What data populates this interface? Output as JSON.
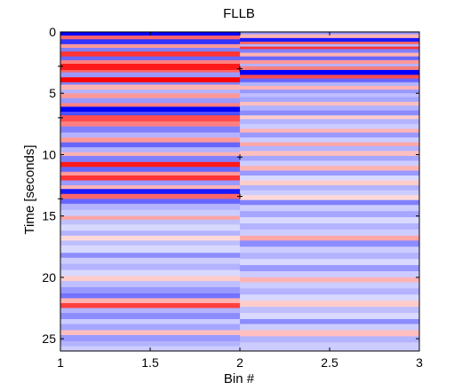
{
  "chart_data": {
    "type": "heatmap",
    "title": "FLLB",
    "xlabel": "Bin #",
    "ylabel": "Time [seconds]",
    "xlim": [
      1,
      3
    ],
    "ylim": [
      0,
      26
    ],
    "y_reversed": true,
    "grid": false,
    "colormap": {
      "negative": "#0000ff",
      "zero": "#ffffff",
      "positive": "#ff0000",
      "range": [
        -1,
        1
      ]
    },
    "x_ticks": [
      {
        "value": 1,
        "label": "1"
      },
      {
        "value": 1.5,
        "label": "1.5"
      },
      {
        "value": 2,
        "label": "2"
      },
      {
        "value": 2.5,
        "label": "2.5"
      },
      {
        "value": 3,
        "label": "3"
      }
    ],
    "y_ticks": [
      {
        "value": 0,
        "label": "0"
      },
      {
        "value": 5,
        "label": "5"
      },
      {
        "value": 10,
        "label": "10"
      },
      {
        "value": 15,
        "label": "15"
      },
      {
        "value": 20,
        "label": "20"
      },
      {
        "value": 25,
        "label": "25"
      }
    ],
    "markers": [
      {
        "x": 1,
        "y": 2.8
      },
      {
        "x": 2,
        "y": 3.0
      },
      {
        "x": 1,
        "y": 7.0
      },
      {
        "x": 2,
        "y": 10.2
      },
      {
        "x": 1,
        "y": 13.6
      },
      {
        "x": 2,
        "y": 13.4
      }
    ],
    "columns": [
      {
        "x_range": [
          1,
          2
        ],
        "bands": [
          [
            0.0,
            0.3,
            -1.0
          ],
          [
            0.3,
            0.6,
            0.6
          ],
          [
            0.6,
            1.0,
            -0.8
          ],
          [
            1.0,
            1.3,
            0.4
          ],
          [
            1.3,
            1.6,
            -0.5
          ],
          [
            1.6,
            2.0,
            0.8
          ],
          [
            2.0,
            2.3,
            -0.6
          ],
          [
            2.3,
            2.6,
            0.5
          ],
          [
            2.6,
            3.1,
            0.9
          ],
          [
            3.1,
            3.3,
            0.6
          ],
          [
            3.3,
            3.7,
            -0.4
          ],
          [
            3.7,
            4.1,
            1.0
          ],
          [
            4.1,
            4.3,
            -0.5
          ],
          [
            4.3,
            4.7,
            0.3
          ],
          [
            4.7,
            5.0,
            -0.3
          ],
          [
            5.0,
            5.4,
            0.4
          ],
          [
            5.4,
            5.8,
            -0.4
          ],
          [
            5.8,
            6.1,
            0.5
          ],
          [
            6.1,
            6.5,
            -1.0
          ],
          [
            6.5,
            6.8,
            -0.7
          ],
          [
            6.8,
            7.3,
            0.7
          ],
          [
            7.3,
            7.7,
            0.5
          ],
          [
            7.7,
            8.2,
            -0.5
          ],
          [
            8.2,
            8.6,
            -0.3
          ],
          [
            8.6,
            9.0,
            0.4
          ],
          [
            9.0,
            9.4,
            -0.6
          ],
          [
            9.4,
            9.8,
            -0.3
          ],
          [
            9.8,
            10.1,
            0.3
          ],
          [
            10.1,
            10.6,
            -0.5
          ],
          [
            10.6,
            11.0,
            0.9
          ],
          [
            11.0,
            11.4,
            -0.6
          ],
          [
            11.4,
            11.7,
            0.4
          ],
          [
            11.7,
            12.1,
            0.8
          ],
          [
            12.1,
            12.5,
            -0.4
          ],
          [
            12.5,
            12.8,
            0.3
          ],
          [
            12.8,
            13.2,
            -0.9
          ],
          [
            13.2,
            13.6,
            0.6
          ],
          [
            13.6,
            14.0,
            -0.6
          ],
          [
            14.0,
            14.5,
            -0.3
          ],
          [
            14.5,
            15.0,
            -0.2
          ],
          [
            15.0,
            15.3,
            0.35
          ],
          [
            15.3,
            15.7,
            -0.25
          ],
          [
            15.7,
            16.2,
            -0.15
          ],
          [
            16.2,
            16.6,
            -0.3
          ],
          [
            16.6,
            17.0,
            0.15
          ],
          [
            17.0,
            17.4,
            -0.25
          ],
          [
            17.4,
            18.0,
            -0.15
          ],
          [
            18.0,
            18.4,
            -0.45
          ],
          [
            18.4,
            18.9,
            -0.2
          ],
          [
            18.9,
            19.4,
            -0.3
          ],
          [
            19.4,
            19.9,
            -0.15
          ],
          [
            19.9,
            20.3,
            0.2
          ],
          [
            20.3,
            20.8,
            -0.25
          ],
          [
            20.8,
            21.3,
            -0.4
          ],
          [
            21.3,
            21.7,
            -0.55
          ],
          [
            21.7,
            22.1,
            0.3
          ],
          [
            22.1,
            22.5,
            0.75
          ],
          [
            22.5,
            22.9,
            -0.3
          ],
          [
            22.9,
            23.4,
            -0.45
          ],
          [
            23.4,
            23.8,
            -0.2
          ],
          [
            23.8,
            24.3,
            -0.35
          ],
          [
            24.3,
            24.7,
            0.25
          ],
          [
            24.7,
            25.2,
            -0.4
          ],
          [
            25.2,
            25.6,
            -0.3
          ],
          [
            25.6,
            26.0,
            -0.2
          ]
        ]
      },
      {
        "x_range": [
          2,
          3
        ],
        "bands": [
          [
            0.0,
            0.2,
            -0.4
          ],
          [
            0.2,
            0.5,
            0.3
          ],
          [
            0.5,
            0.8,
            -0.9
          ],
          [
            0.8,
            1.0,
            0.6
          ],
          [
            1.0,
            1.2,
            -0.3
          ],
          [
            1.2,
            1.4,
            0.8
          ],
          [
            1.4,
            1.7,
            -0.5
          ],
          [
            1.7,
            2.0,
            0.3
          ],
          [
            2.0,
            2.3,
            -0.6
          ],
          [
            2.3,
            2.6,
            0.4
          ],
          [
            2.6,
            2.8,
            -0.3
          ],
          [
            2.8,
            3.1,
            0.5
          ],
          [
            3.1,
            3.5,
            -1.0
          ],
          [
            3.5,
            3.8,
            0.7
          ],
          [
            3.8,
            4.1,
            -0.6
          ],
          [
            4.1,
            4.4,
            -0.3
          ],
          [
            4.4,
            4.7,
            0.3
          ],
          [
            4.7,
            5.0,
            -0.4
          ],
          [
            5.0,
            5.3,
            -0.25
          ],
          [
            5.3,
            5.7,
            -0.35
          ],
          [
            5.7,
            6.0,
            0.25
          ],
          [
            6.0,
            6.4,
            -0.3
          ],
          [
            6.4,
            6.8,
            -0.45
          ],
          [
            6.8,
            7.1,
            0.2
          ],
          [
            7.1,
            7.5,
            -0.3
          ],
          [
            7.5,
            7.9,
            -0.2
          ],
          [
            7.9,
            8.2,
            0.3
          ],
          [
            8.2,
            8.6,
            -0.4
          ],
          [
            8.6,
            9.0,
            -0.2
          ],
          [
            9.0,
            9.3,
            0.35
          ],
          [
            9.3,
            9.7,
            -0.3
          ],
          [
            9.7,
            10.1,
            0.25
          ],
          [
            10.1,
            10.5,
            -0.35
          ],
          [
            10.5,
            10.9,
            -0.2
          ],
          [
            10.9,
            11.3,
            0.3
          ],
          [
            11.3,
            11.7,
            -0.4
          ],
          [
            11.7,
            12.1,
            -0.15
          ],
          [
            12.1,
            12.5,
            0.2
          ],
          [
            12.5,
            12.9,
            -0.3
          ],
          [
            12.9,
            13.3,
            -0.2
          ],
          [
            13.3,
            13.7,
            0.15
          ],
          [
            13.7,
            14.1,
            -0.5
          ],
          [
            14.1,
            14.6,
            -0.2
          ],
          [
            14.6,
            15.1,
            -0.35
          ],
          [
            15.1,
            15.6,
            -0.15
          ],
          [
            15.6,
            16.1,
            -0.3
          ],
          [
            16.1,
            16.6,
            -0.2
          ],
          [
            16.6,
            17.0,
            0.35
          ],
          [
            17.0,
            17.5,
            -0.45
          ],
          [
            17.5,
            18.0,
            -0.2
          ],
          [
            18.0,
            18.5,
            -0.3
          ],
          [
            18.5,
            19.0,
            -0.15
          ],
          [
            19.0,
            19.5,
            -0.4
          ],
          [
            19.5,
            20.0,
            -0.2
          ],
          [
            20.0,
            20.4,
            0.3
          ],
          [
            20.4,
            20.9,
            -0.2
          ],
          [
            20.9,
            21.4,
            -0.3
          ],
          [
            21.4,
            21.9,
            -0.15
          ],
          [
            21.9,
            22.4,
            0.2
          ],
          [
            22.4,
            22.9,
            -0.25
          ],
          [
            22.9,
            23.4,
            -0.15
          ],
          [
            23.4,
            23.8,
            -0.45
          ],
          [
            23.8,
            24.3,
            -0.2
          ],
          [
            24.3,
            24.8,
            0.25
          ],
          [
            24.8,
            25.3,
            -0.3
          ],
          [
            25.3,
            26.0,
            -0.2
          ]
        ]
      }
    ]
  }
}
